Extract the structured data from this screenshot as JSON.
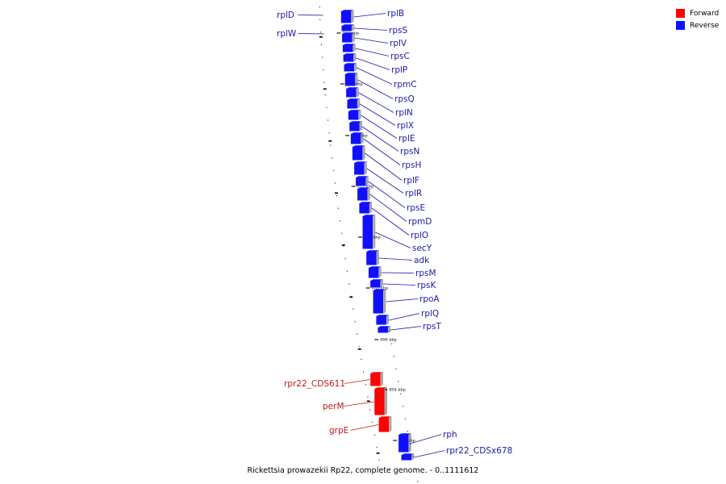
{
  "colors": {
    "forward": "#ff0000",
    "reverse": "#1010ff",
    "forward_label": "#c81818",
    "reverse_label": "#1a1aa8",
    "backbone": "#888888"
  },
  "legend": [
    {
      "label": "Forward",
      "strand": "forward"
    },
    {
      "label": "Reverse",
      "strand": "reverse"
    }
  ],
  "caption": "Rickettsia prowazekii Rp22, complete genome. - 0..1111612",
  "ticks": [
    "818 kbp",
    "816 kbp",
    "814 kbp",
    "812 kbp",
    "810 kbp",
    "808 kbp",
    "806 kbp",
    "804 kbp",
    "802 kbp"
  ],
  "genes": [
    {
      "name": "rplD",
      "strand": "reverse"
    },
    {
      "name": "rplW",
      "strand": "reverse"
    },
    {
      "name": "rplB",
      "strand": "reverse"
    },
    {
      "name": "rpsS",
      "strand": "reverse"
    },
    {
      "name": "rplV",
      "strand": "reverse"
    },
    {
      "name": "rpsC",
      "strand": "reverse"
    },
    {
      "name": "rplP",
      "strand": "reverse"
    },
    {
      "name": "rpmC",
      "strand": "reverse"
    },
    {
      "name": "rpsQ",
      "strand": "reverse"
    },
    {
      "name": "rplN",
      "strand": "reverse"
    },
    {
      "name": "rplX",
      "strand": "reverse"
    },
    {
      "name": "rplE",
      "strand": "reverse"
    },
    {
      "name": "rpsN",
      "strand": "reverse"
    },
    {
      "name": "rpsH",
      "strand": "reverse"
    },
    {
      "name": "rplF",
      "strand": "reverse"
    },
    {
      "name": "rplR",
      "strand": "reverse"
    },
    {
      "name": "rpsE",
      "strand": "reverse"
    },
    {
      "name": "rpmD",
      "strand": "reverse"
    },
    {
      "name": "rplO",
      "strand": "reverse"
    },
    {
      "name": "secY",
      "strand": "reverse"
    },
    {
      "name": "adk",
      "strand": "reverse"
    },
    {
      "name": "rpsM",
      "strand": "reverse"
    },
    {
      "name": "rpsK",
      "strand": "reverse"
    },
    {
      "name": "rpoA",
      "strand": "reverse"
    },
    {
      "name": "rplQ",
      "strand": "reverse"
    },
    {
      "name": "rpsT",
      "strand": "reverse"
    },
    {
      "name": "rpr22_CDS611",
      "strand": "forward"
    },
    {
      "name": "perM",
      "strand": "forward"
    },
    {
      "name": "grpE",
      "strand": "forward"
    },
    {
      "name": "rph",
      "strand": "reverse"
    },
    {
      "name": "rpr22_CDSx678",
      "strand": "reverse"
    }
  ]
}
